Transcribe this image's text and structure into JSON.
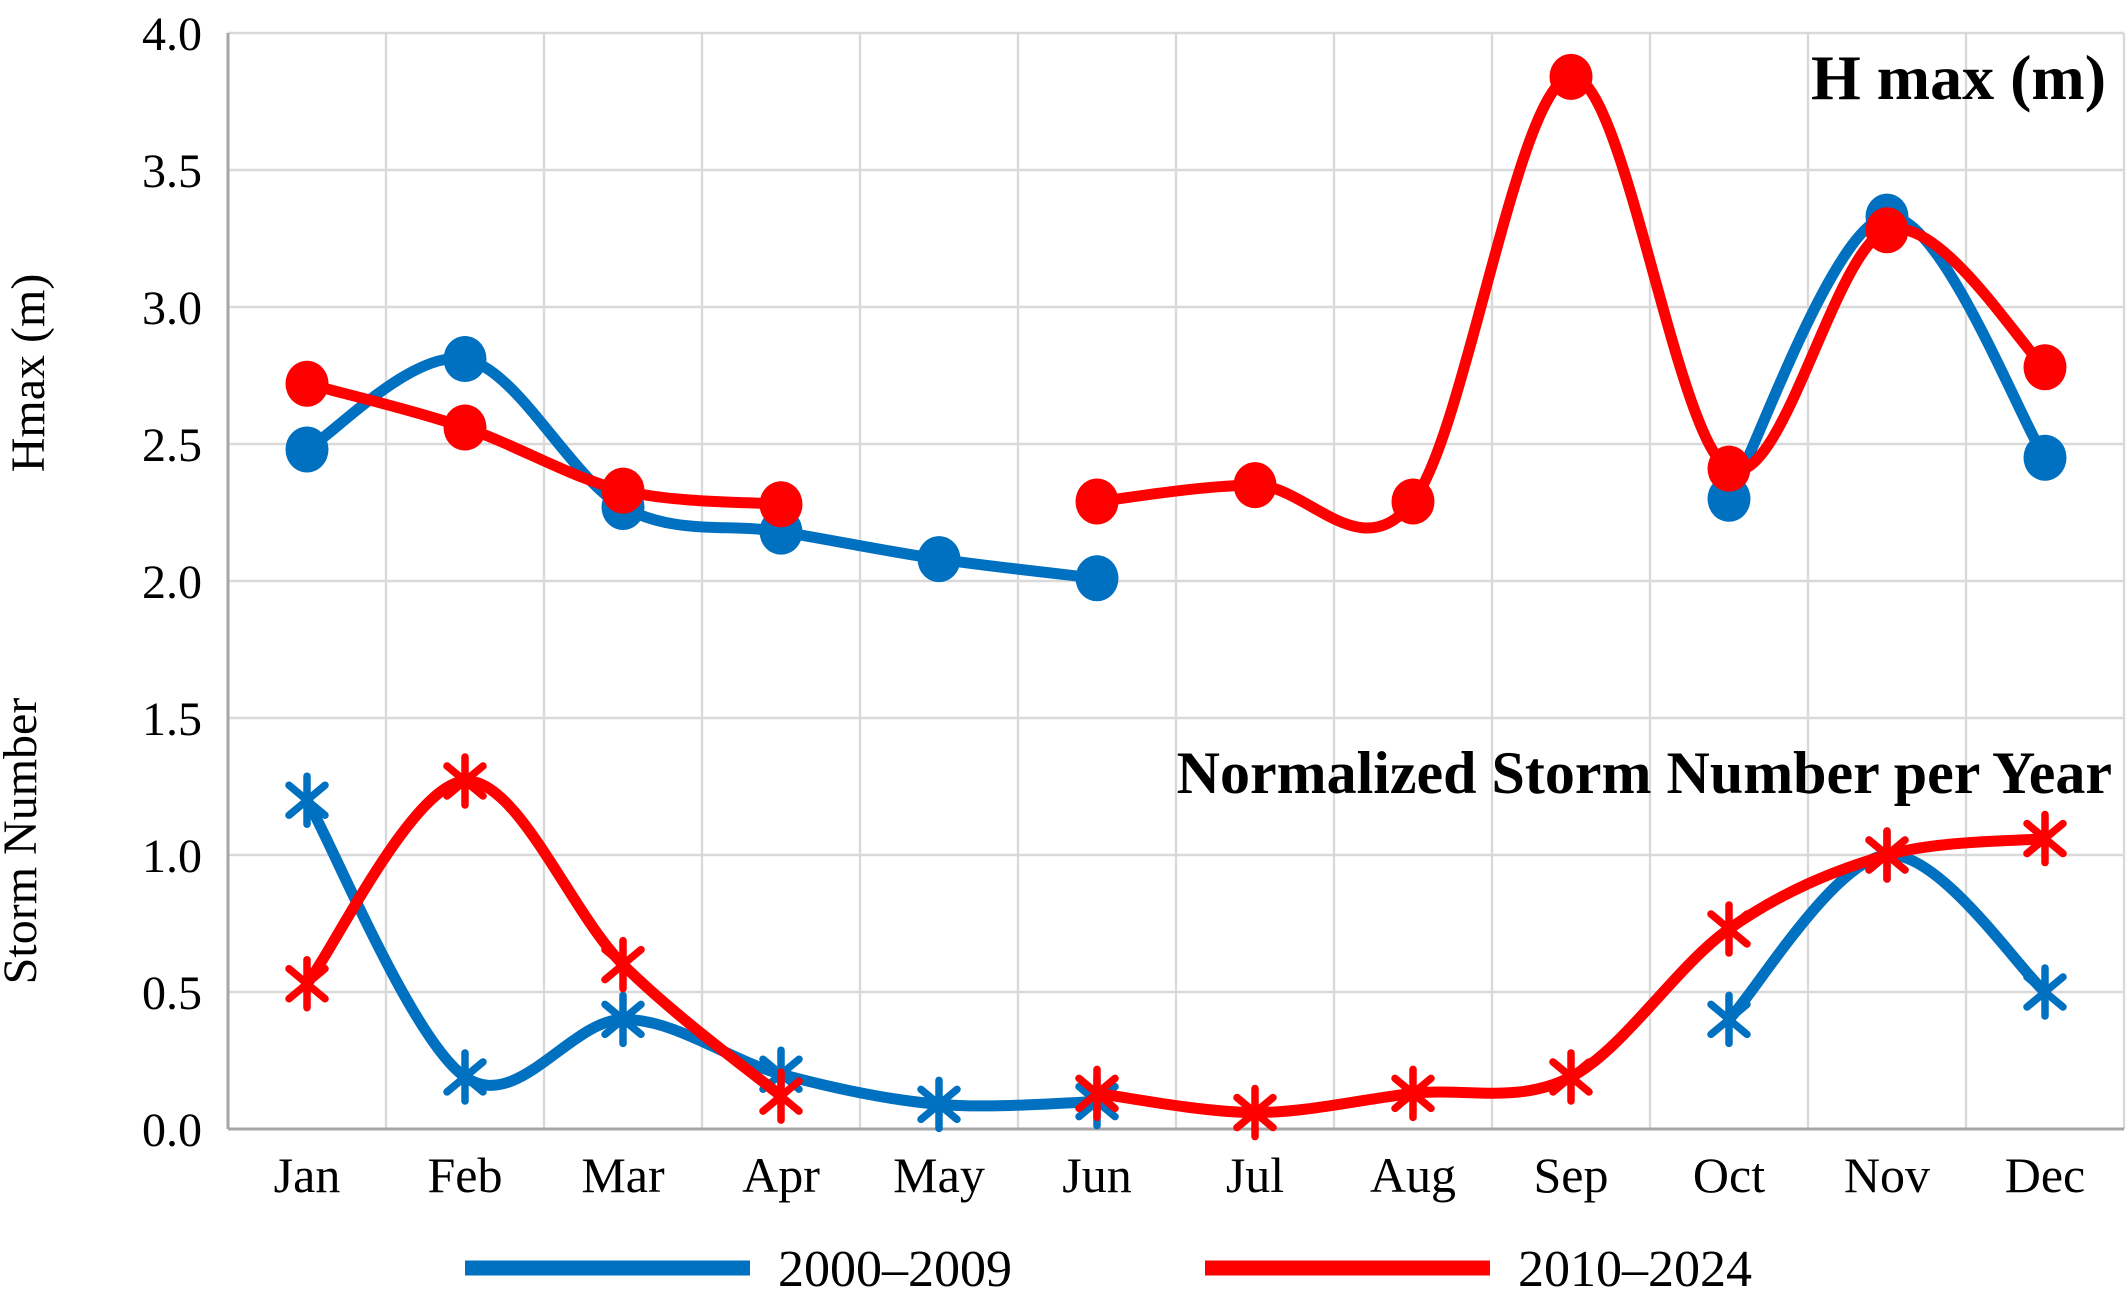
{
  "figure": {
    "title_hmax": "H max (m)",
    "title_storm": "Normalized Storm Number per Year",
    "ylabel_hmax": "Hmax (m)",
    "ylabel_storm": "Storm Number"
  },
  "legend": {
    "items": [
      {
        "label": "2000–2009",
        "color": "#0070C0"
      },
      {
        "label": "2010–2024",
        "color": "#FF0000"
      }
    ]
  },
  "chart_data": {
    "type": "line",
    "smooth": true,
    "grid": true,
    "legend_position": "bottom",
    "categories": [
      "Jan",
      "Feb",
      "Mar",
      "Apr",
      "May",
      "Jun",
      "Jul",
      "Aug",
      "Sep",
      "Oct",
      "Nov",
      "Dec"
    ],
    "ylim": [
      0.0,
      4.0
    ],
    "y_tick_step": 0.5,
    "y_tick_labels": [
      "0.0",
      "0.5",
      "1.0",
      "1.5",
      "2.0",
      "2.5",
      "3.0",
      "3.5",
      "4.0"
    ],
    "annotations": [
      {
        "text": "H max (m)",
        "position": "top-right"
      },
      {
        "text": "Normalized Storm Number per Year",
        "position": "middle-right"
      }
    ],
    "series": [
      {
        "name": "2000–2009",
        "group": "Hmax (m)",
        "color": "#0070C0",
        "marker": "circle",
        "values": [
          2.48,
          2.81,
          2.27,
          2.18,
          2.08,
          2.01,
          null,
          null,
          null,
          2.3,
          3.33,
          2.45
        ]
      },
      {
        "name": "2010–2024",
        "group": "Hmax (m)",
        "color": "#FF0000",
        "marker": "circle",
        "values": [
          2.72,
          2.56,
          2.33,
          2.28,
          null,
          2.29,
          2.35,
          2.29,
          3.84,
          2.41,
          3.28,
          2.78
        ]
      },
      {
        "name": "2000–2009",
        "group": "Storm Number",
        "color": "#0070C0",
        "marker": "star",
        "values": [
          1.2,
          0.19,
          0.4,
          0.2,
          0.09,
          0.1,
          null,
          null,
          null,
          0.4,
          1.0,
          0.5
        ]
      },
      {
        "name": "2010–2024",
        "group": "Storm Number",
        "color": "#FF0000",
        "marker": "star",
        "values": [
          0.53,
          1.27,
          0.6,
          0.12,
          null,
          0.13,
          0.06,
          0.13,
          0.19,
          0.73,
          1.0,
          1.06
        ]
      }
    ]
  },
  "colors": {
    "blue": "#0070C0",
    "red": "#FF0000",
    "gridline": "#D9D9D9",
    "axis": "#A6A6A6",
    "text": "#000000",
    "background": "#FFFFFF"
  }
}
